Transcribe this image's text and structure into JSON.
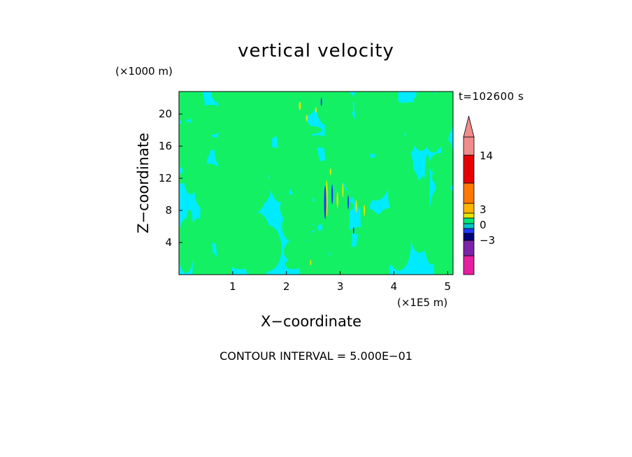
{
  "chart_data": {
    "type": "heatmap",
    "title": "vertical velocity",
    "time_label": "t=102600 s",
    "xlabel": "X−coordinate",
    "ylabel": "Z−coordinate",
    "x_unit": "(×1E5 m)",
    "z_unit": "(×1000 m)",
    "xlim": [
      0,
      5.1
    ],
    "ylim": [
      0,
      22.8
    ],
    "x_ticks": [
      1,
      2,
      3,
      4,
      5
    ],
    "x_tick_labels": [
      "1",
      "2",
      "3",
      "4",
      "5"
    ],
    "y_ticks": [
      4,
      8,
      12,
      16,
      20
    ],
    "y_tick_labels": [
      "4",
      "8",
      "12",
      "16",
      "20"
    ],
    "contour_interval_text": "CONTOUR INTERVAL = 5.000E−01",
    "colorbar": {
      "levels": [
        {
          "color": "#e61ea0"
        },
        {
          "color": "#7a22aa"
        },
        {
          "color": "#00007a"
        },
        {
          "color": "#1e3cff"
        },
        {
          "color": "#00c8c8"
        },
        {
          "color": "#00e67a"
        },
        {
          "color": "#e6e600"
        },
        {
          "color": "#ffb400"
        },
        {
          "color": "#ff7800"
        },
        {
          "color": "#e60000"
        },
        {
          "color": "#f08c8c"
        }
      ],
      "labels": [
        "14",
        "3",
        "0",
        "−3"
      ],
      "extend": "max"
    },
    "dominant_colors": {
      "background": "#00ebff",
      "positive_small": "#14f064",
      "updraft": "#e6e600",
      "downdraft": "#1e3cff"
    }
  }
}
